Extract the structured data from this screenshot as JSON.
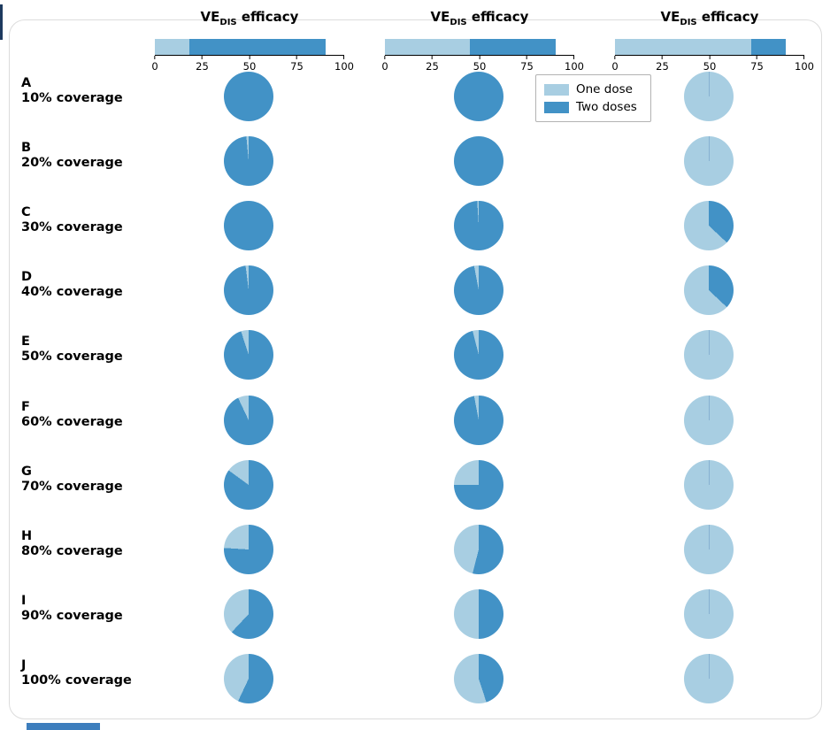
{
  "colors": {
    "one_dose": "#a8cee2",
    "two_doses": "#4292c6",
    "card_border": "#dcdcdc",
    "legend_border": "#b3b3b3",
    "edge_artifact_dark": "#1e3a5f",
    "edge_artifact_blue": "#3d7ebd"
  },
  "legend": {
    "one": "One dose",
    "two": "Two doses"
  },
  "axis_ticks": [
    "0",
    "25",
    "50",
    "75",
    "100"
  ],
  "columns": [
    {
      "title": {
        "main": "VE",
        "sub": "DIS",
        "rest": " efficacy"
      }
    },
    {
      "title": {
        "main": "VE",
        "sub": "DIS",
        "rest": " efficacy"
      }
    },
    {
      "title": {
        "main": "VE",
        "sub": "DIS",
        "rest": " efficacy"
      }
    }
  ],
  "rows": [
    {
      "letter": "A",
      "coverage": "10% coverage"
    },
    {
      "letter": "B",
      "coverage": "20% coverage"
    },
    {
      "letter": "C",
      "coverage": "30% coverage"
    },
    {
      "letter": "D",
      "coverage": "40% coverage"
    },
    {
      "letter": "E",
      "coverage": "50% coverage"
    },
    {
      "letter": "F",
      "coverage": "60% coverage"
    },
    {
      "letter": "G",
      "coverage": "70% coverage"
    },
    {
      "letter": "H",
      "coverage": "80% coverage"
    },
    {
      "letter": "I",
      "coverage": "90% coverage"
    },
    {
      "letter": "J",
      "coverage": "100% coverage"
    }
  ],
  "chart_data": {
    "type": "pie",
    "description": "Grid of pie charts showing the proportion of vaccinees receiving one dose vs two doses, by vaccination coverage level (rows A-J, 10%-100%) under three VE_DIS efficacy scenarios (columns). Each column header shows a horizontal stacked bar of one-dose vs two-dose VE_DIS efficacy on a 0-100 scale.",
    "legend": [
      "One dose",
      "Two doses"
    ],
    "xlim": [
      0,
      100
    ],
    "ticks": [
      0,
      25,
      50,
      75,
      100
    ],
    "coverage_rows": [
      "10%",
      "20%",
      "30%",
      "40%",
      "50%",
      "60%",
      "70%",
      "80%",
      "90%",
      "100%"
    ],
    "scenarios": [
      {
        "ve_dis_bar": {
          "one_dose": 18,
          "two_doses": 90
        },
        "one_dose_share_pct": [
          0,
          1.5,
          0,
          2,
          5,
          7,
          15,
          24,
          38,
          43
        ]
      },
      {
        "ve_dis_bar": {
          "one_dose": 45,
          "two_doses": 90
        },
        "one_dose_share_pct": [
          0,
          0,
          1,
          3,
          4,
          3,
          25,
          46,
          50,
          55
        ]
      },
      {
        "ve_dis_bar": {
          "one_dose": 72,
          "two_doses": 90
        },
        "one_dose_share_pct": [
          100,
          100,
          63,
          63,
          100,
          100,
          100,
          100,
          100,
          100
        ]
      }
    ]
  }
}
